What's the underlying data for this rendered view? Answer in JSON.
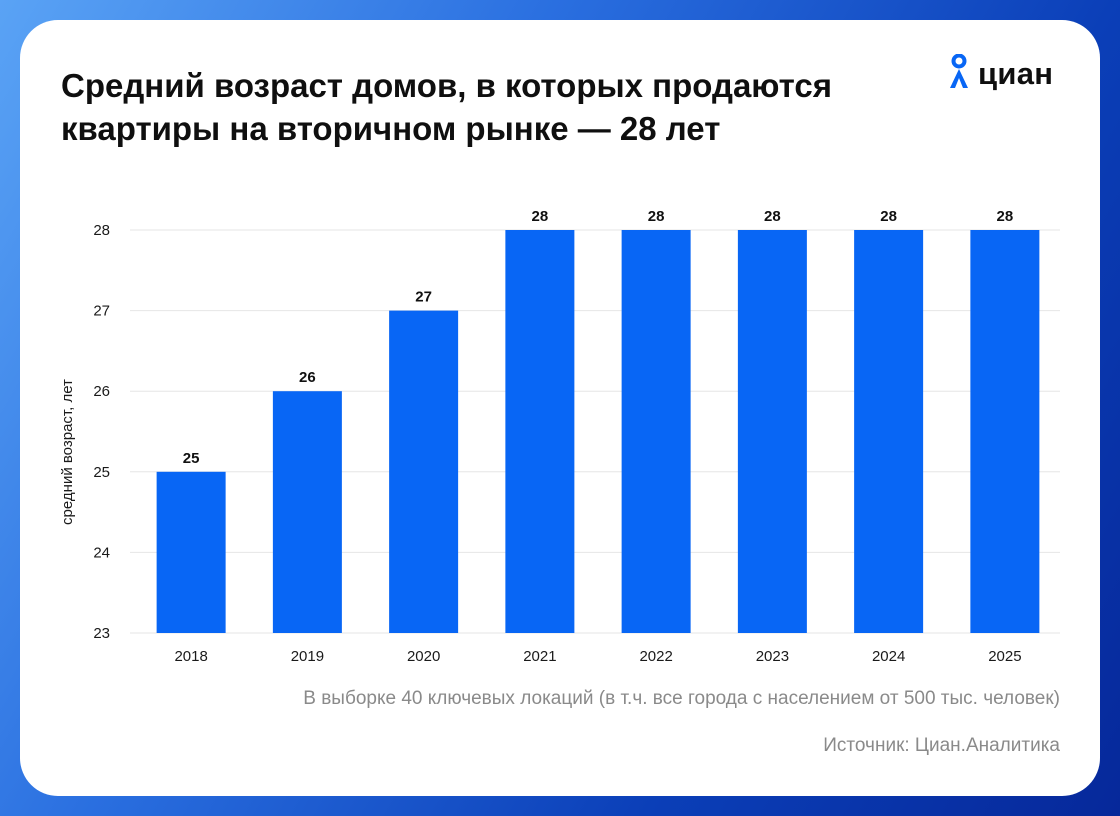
{
  "header": {
    "title": "Средний возраст домов, в которых продаются квартиры на вторичном рынке — 28 лет"
  },
  "logo": {
    "text": "циан",
    "icon": "cian-pin-icon"
  },
  "footnote": "В выборке 40 ключевых локаций (в т.ч. все города с населением от 500 тыс. человек)",
  "source": "Источник: Циан.Аналитика",
  "colors": {
    "bar": "#0866f5",
    "grid": "#e6e6e6",
    "text": "#0f0f0f",
    "muted": "#8a8a8a"
  },
  "chart_data": {
    "type": "bar",
    "title": "Средний возраст домов, в которых продаются квартиры на вторичном рынке — 28 лет",
    "xlabel": "",
    "ylabel": "средний возраст, лет",
    "categories": [
      "2018",
      "2019",
      "2020",
      "2021",
      "2022",
      "2023",
      "2024",
      "2025"
    ],
    "values": [
      25,
      26,
      27,
      28,
      28,
      28,
      28,
      28
    ],
    "data_labels": [
      "25",
      "26",
      "27",
      "28",
      "28",
      "28",
      "28",
      "28"
    ],
    "ylim": [
      23,
      28
    ],
    "yticks": [
      "23",
      "24",
      "25",
      "26",
      "27",
      "28"
    ],
    "grid": true,
    "legend": "none"
  }
}
